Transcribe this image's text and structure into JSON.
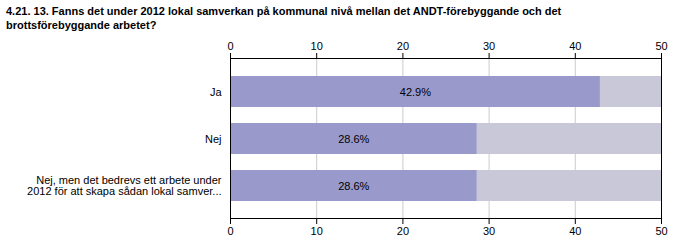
{
  "chart_data": {
    "type": "bar",
    "orientation": "horizontal",
    "title": "4.21. 13. Fanns det under 2012 lokal samverkan på kommunal nivå mellan det ANDT-förebyggande och det\nbrottsförebyggande arbetet?",
    "categories": [
      "Ja",
      "Nej",
      "Nej, men det bedrevs ett arbete under\n2012 för att skapa sådan lokal samver..."
    ],
    "values": [
      42.9,
      28.6,
      28.6
    ],
    "value_labels": [
      "42.9%",
      "28.6%",
      "28.6%"
    ],
    "data_labels": true,
    "color": "#9999cc",
    "xlim": [
      0,
      50
    ],
    "xticks": [
      0,
      10,
      20,
      30,
      40,
      50
    ],
    "grid": true
  }
}
